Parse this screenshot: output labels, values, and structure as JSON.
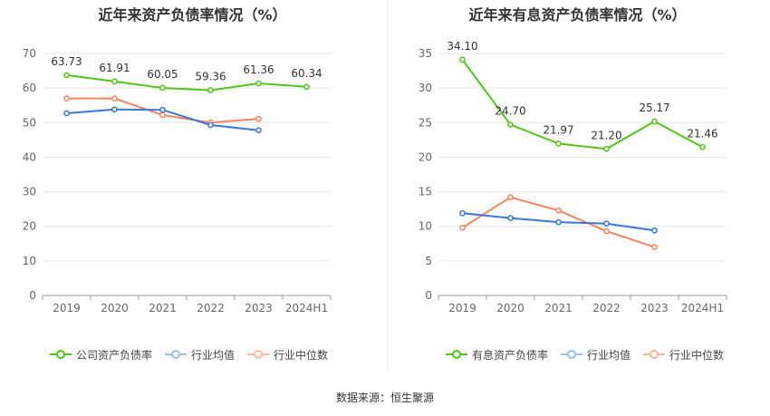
{
  "source_label": "数据来源：恒生聚源",
  "chart_data": [
    {
      "type": "line",
      "title": "近年来资产负债率情况（%）",
      "categories": [
        "2019",
        "2020",
        "2021",
        "2022",
        "2023",
        "2024H1"
      ],
      "ylim": [
        0,
        70
      ],
      "yticks": [
        0,
        10,
        20,
        30,
        40,
        50,
        60,
        70
      ],
      "grid": true,
      "legend_position": "bottom",
      "series": [
        {
          "name": "公司资产负债率",
          "color": "#52c41a",
          "values": [
            63.73,
            61.91,
            60.05,
            59.36,
            61.36,
            60.34
          ],
          "labels": [
            "63.73",
            "61.91",
            "60.05",
            "59.36",
            "61.36",
            "60.34"
          ]
        },
        {
          "name": "行业均值",
          "color": "#3a77d6",
          "values": [
            52.7,
            53.8,
            53.7,
            49.3,
            47.8,
            null
          ]
        },
        {
          "name": "行业中位数",
          "color": "#f4845f",
          "values": [
            57.0,
            57.0,
            52.2,
            50.0,
            51.1,
            null
          ]
        }
      ]
    },
    {
      "type": "line",
      "title": "近年来有息资产负债率情况（%）",
      "categories": [
        "2019",
        "2020",
        "2021",
        "2022",
        "2023",
        "2024H1"
      ],
      "ylim": [
        0,
        35
      ],
      "yticks": [
        0,
        5,
        10,
        15,
        20,
        25,
        30,
        35
      ],
      "grid": true,
      "legend_position": "bottom",
      "series": [
        {
          "name": "有息资产负债率",
          "color": "#52c41a",
          "values": [
            34.1,
            24.7,
            21.97,
            21.2,
            25.17,
            21.46
          ],
          "labels": [
            "34.10",
            "24.70",
            "21.97",
            "21.20",
            "25.17",
            "21.46"
          ]
        },
        {
          "name": "行业均值",
          "color": "#3a77d6",
          "values": [
            11.9,
            11.2,
            10.6,
            10.4,
            9.4,
            null
          ]
        },
        {
          "name": "行业中位数",
          "color": "#f4845f",
          "values": [
            9.8,
            14.2,
            12.3,
            9.3,
            7.0,
            null
          ]
        }
      ]
    }
  ]
}
